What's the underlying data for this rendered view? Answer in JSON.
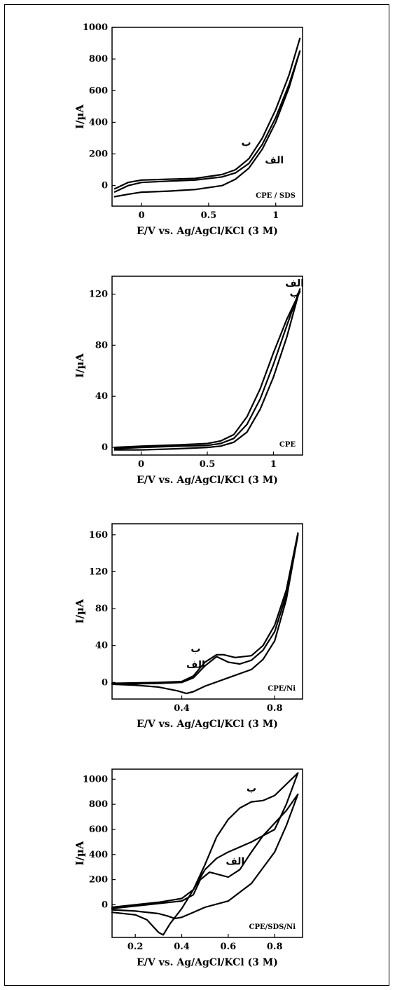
{
  "chart_data": [
    {
      "type": "line",
      "xlabel": "E/V vs. Ag/AgCl/KCl (3 M)",
      "ylabel": "I/µA",
      "xlim": [
        -0.22,
        1.2
      ],
      "ylim": [
        -130,
        1000
      ],
      "xticks": [
        0,
        0.5,
        1
      ],
      "xtick_labels": [
        "0",
        "0.5",
        "1"
      ],
      "yticks": [
        0,
        200,
        400,
        600,
        800,
        1000
      ],
      "ytick_labels": [
        "0",
        "200",
        "400",
        "600",
        "800",
        "1000"
      ],
      "panel_label": "CPE / SDS",
      "annotations": [
        {
          "text": "ب",
          "x": 0.78,
          "y": 250
        },
        {
          "text": "الف",
          "x": 0.99,
          "y": 140
        }
      ],
      "series": [
        {
          "label_ref": "الف",
          "x": [
            -0.2,
            -0.1,
            0,
            0.2,
            0.4,
            0.6,
            0.7,
            0.8,
            0.9,
            1.0,
            1.1,
            1.18,
            1.18,
            1.1,
            1.0,
            0.9,
            0.8,
            0.7,
            0.6,
            0.4,
            0.2,
            0,
            -0.1,
            -0.2
          ],
          "y": [
            -40,
            0,
            20,
            28,
            35,
            55,
            80,
            140,
            260,
            430,
            640,
            850,
            850,
            620,
            400,
            230,
            110,
            40,
            0,
            -25,
            -35,
            -42,
            -55,
            -70
          ]
        },
        {
          "label_ref": "ب",
          "x": [
            -0.2,
            -0.1,
            0,
            0.2,
            0.4,
            0.6,
            0.7,
            0.8,
            0.9,
            1.0,
            1.1,
            1.18
          ],
          "y": [
            -20,
            20,
            35,
            40,
            45,
            70,
            100,
            170,
            300,
            480,
            700,
            930
          ]
        }
      ]
    },
    {
      "type": "line",
      "xlabel": "E/V vs. Ag/AgCl/KCl (3 M)",
      "ylabel": "I/µA",
      "xlim": [
        -0.22,
        1.22
      ],
      "ylim": [
        -6,
        134
      ],
      "xticks": [
        0,
        0.5,
        1
      ],
      "xtick_labels": [
        "0",
        "0.5",
        "1"
      ],
      "yticks": [
        0,
        40,
        80,
        120
      ],
      "ytick_labels": [
        "0",
        "40",
        "80",
        "120"
      ],
      "panel_label": "CPE",
      "annotations": [
        {
          "text": "الف",
          "x": 1.16,
          "y": 126
        },
        {
          "text": "ب",
          "x": 1.16,
          "y": 118
        }
      ],
      "series": [
        {
          "label_ref": "الف",
          "x": [
            -0.2,
            0,
            0.3,
            0.5,
            0.6,
            0.7,
            0.8,
            0.9,
            1.0,
            1.1,
            1.2,
            1.2,
            1.1,
            1.0,
            0.9,
            0.8,
            0.7,
            0.6,
            0.5,
            0.3,
            0,
            -0.2
          ],
          "y": [
            -1,
            0,
            1,
            1.5,
            3,
            7,
            18,
            38,
            65,
            95,
            124,
            124,
            86,
            55,
            30,
            12,
            4,
            1,
            0,
            -1,
            -2,
            -2
          ]
        },
        {
          "label_ref": "ب",
          "x": [
            -0.2,
            0,
            0.3,
            0.5,
            0.6,
            0.7,
            0.8,
            0.9,
            1.0,
            1.1,
            1.2
          ],
          "y": [
            0,
            1,
            2,
            3,
            5,
            10,
            24,
            46,
            74,
            100,
            122
          ]
        }
      ]
    },
    {
      "type": "line",
      "xlabel": "E/V vs. Ag/AgCl/KCl (3 M)",
      "ylabel": "I/µA",
      "xlim": [
        0.1,
        0.92
      ],
      "ylim": [
        -18,
        172
      ],
      "xticks": [
        0.4,
        0.8
      ],
      "xtick_labels": [
        "0.4",
        "0.8"
      ],
      "yticks": [
        0,
        40,
        80,
        120,
        160
      ],
      "ytick_labels": [
        "0",
        "40",
        "80",
        "120",
        "160"
      ],
      "panel_label": "CPE/Ni",
      "annotations": [
        {
          "text": "ب",
          "x": 0.46,
          "y": 33
        },
        {
          "text": "الف",
          "x": 0.46,
          "y": 16
        }
      ],
      "series": [
        {
          "label_ref": "الف",
          "x": [
            0.1,
            0.3,
            0.4,
            0.45,
            0.5,
            0.55,
            0.6,
            0.65,
            0.7,
            0.75,
            0.8,
            0.85,
            0.9,
            0.9,
            0.85,
            0.8,
            0.75,
            0.7,
            0.6,
            0.5,
            0.45,
            0.42,
            0.38,
            0.3,
            0.2,
            0.1
          ],
          "y": [
            -2,
            -1,
            0,
            5,
            18,
            28,
            22,
            20,
            24,
            35,
            55,
            95,
            160,
            160,
            90,
            45,
            25,
            14,
            5,
            -4,
            -10,
            -12,
            -9,
            -5,
            -3,
            -2
          ]
        },
        {
          "label_ref": "ب",
          "x": [
            0.1,
            0.3,
            0.4,
            0.45,
            0.5,
            0.55,
            0.58,
            0.63,
            0.7,
            0.75,
            0.8,
            0.85,
            0.9
          ],
          "y": [
            -1,
            0,
            1,
            7,
            22,
            30,
            30,
            27,
            29,
            40,
            62,
            100,
            162
          ]
        }
      ]
    },
    {
      "type": "line",
      "xlabel": "E/V vs. Ag/AgCl/KCl (3 M)",
      "ylabel": "I/µA",
      "xlim": [
        0.1,
        0.92
      ],
      "ylim": [
        -260,
        1080
      ],
      "xticks": [
        0.2,
        0.4,
        0.6,
        0.8
      ],
      "xtick_labels": [
        "0.2",
        "0.4",
        "0.6",
        "0.8"
      ],
      "yticks": [
        0,
        200,
        400,
        600,
        800,
        1000
      ],
      "ytick_labels": [
        "0",
        "200",
        "400",
        "600",
        "800",
        "1000"
      ],
      "panel_label": "CPE/SDS/Ni",
      "annotations": [
        {
          "text": "ب",
          "x": 0.7,
          "y": 900
        },
        {
          "text": "الف",
          "x": 0.63,
          "y": 320
        }
      ],
      "series": [
        {
          "label_ref": "الف",
          "x": [
            0.1,
            0.3,
            0.4,
            0.45,
            0.48,
            0.52,
            0.56,
            0.6,
            0.65,
            0.7,
            0.75,
            0.8,
            0.85,
            0.9,
            0.9,
            0.85,
            0.8,
            0.7,
            0.6,
            0.5,
            0.45,
            0.4,
            0.37,
            0.34,
            0.3,
            0.2,
            0.1
          ],
          "y": [
            -30,
            10,
            30,
            80,
            200,
            260,
            240,
            220,
            280,
            420,
            550,
            650,
            750,
            880,
            880,
            630,
            420,
            170,
            30,
            -20,
            -60,
            -100,
            -110,
            -90,
            -70,
            -50,
            -40
          ]
        },
        {
          "label_ref": "ب",
          "x": [
            0.1,
            0.3,
            0.4,
            0.45,
            0.5,
            0.55,
            0.6,
            0.65,
            0.7,
            0.75,
            0.8,
            0.85,
            0.9,
            0.9,
            0.85,
            0.8,
            0.7,
            0.6,
            0.55,
            0.5,
            0.45,
            0.4,
            0.35,
            0.32,
            0.3,
            0.25,
            0.2,
            0.1
          ],
          "y": [
            -20,
            20,
            50,
            120,
            320,
            540,
            680,
            770,
            820,
            830,
            870,
            960,
            1050,
            1050,
            800,
            600,
            500,
            420,
            370,
            280,
            120,
            -30,
            -150,
            -240,
            -220,
            -120,
            -80,
            -60
          ]
        }
      ]
    }
  ]
}
